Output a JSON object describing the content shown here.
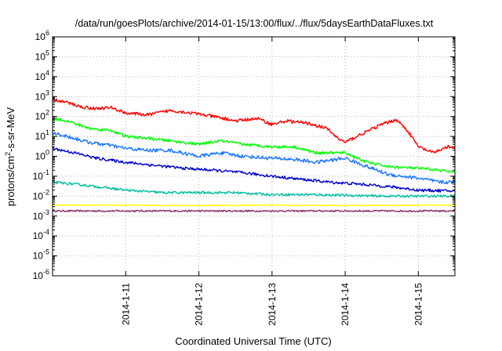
{
  "chart_data": {
    "type": "line",
    "title": "/data/run/goesPlots/archive/2014-01-15/13:00/flux/../flux/5daysEarthDataFluxes.txt",
    "xlabel": "Coordinated Universal Time (UTC)",
    "ylabel_parts": {
      "base": "protons/cm",
      "sup": "2",
      "rest": "-s-sr-MeV"
    },
    "y_scale": "log",
    "ylim": [
      1e-06,
      1000000
    ],
    "y_tick_exponents": [
      -6,
      -5,
      -4,
      -3,
      -2,
      -1,
      0,
      1,
      2,
      3,
      4,
      5,
      6
    ],
    "xlim": [
      0,
      5.5
    ],
    "x_ticks": [
      {
        "label": "2014-1-11",
        "x": 1
      },
      {
        "label": "2014-1-12",
        "x": 2
      },
      {
        "label": "2014-1-13",
        "x": 3
      },
      {
        "label": "2014-1-14",
        "x": 4
      },
      {
        "label": "2014-1-15",
        "x": 5
      }
    ],
    "grid": true,
    "series": [
      {
        "color": "#ff0000",
        "noise": 0.08,
        "x": [
          0,
          0.2,
          0.4,
          0.6,
          0.8,
          1.0,
          1.3,
          1.6,
          1.9,
          2.2,
          2.5,
          2.8,
          3.0,
          3.2,
          3.5,
          3.75,
          3.9,
          4.0,
          4.2,
          4.5,
          4.7,
          4.85,
          5.0,
          5.2,
          5.4,
          5.5
        ],
        "y": [
          700,
          500,
          300,
          250,
          280,
          150,
          120,
          200,
          150,
          100,
          60,
          80,
          40,
          60,
          45,
          25,
          8,
          5,
          12,
          40,
          70,
          20,
          3,
          1.5,
          3,
          2.5
        ]
      },
      {
        "color": "#00ff00",
        "noise": 0.07,
        "x": [
          0,
          0.2,
          0.5,
          0.8,
          1.0,
          1.3,
          1.6,
          2.0,
          2.3,
          2.6,
          3.0,
          3.3,
          3.6,
          4.0,
          4.3,
          4.6,
          5.0,
          5.3,
          5.5
        ],
        "y": [
          80,
          60,
          25,
          20,
          10,
          8,
          6,
          4,
          6,
          4,
          3,
          3,
          1.5,
          1.5,
          0.5,
          0.3,
          0.25,
          0.2,
          0.15
        ]
      },
      {
        "color": "#1e78ff",
        "noise": 0.09,
        "x": [
          0,
          0.2,
          0.5,
          0.8,
          1.0,
          1.3,
          1.6,
          2.0,
          2.3,
          2.6,
          3.0,
          3.3,
          3.6,
          4.0,
          4.3,
          4.6,
          5.0,
          5.3,
          5.5
        ],
        "y": [
          15,
          10,
          5,
          3.5,
          2.5,
          2,
          2,
          1,
          1.5,
          1,
          0.8,
          0.7,
          0.5,
          0.8,
          0.3,
          0.12,
          0.08,
          0.05,
          0.05
        ]
      },
      {
        "color": "#0000cc",
        "noise": 0.07,
        "x": [
          0,
          0.3,
          0.6,
          1.0,
          1.4,
          1.8,
          2.2,
          2.6,
          3.0,
          3.4,
          3.8,
          4.2,
          4.6,
          5.0,
          5.5
        ],
        "y": [
          2.5,
          1.5,
          0.8,
          0.5,
          0.35,
          0.25,
          0.2,
          0.15,
          0.1,
          0.07,
          0.05,
          0.04,
          0.03,
          0.02,
          0.018
        ]
      },
      {
        "color": "#00bfa0",
        "noise": 0.06,
        "x": [
          0,
          0.3,
          0.6,
          1.0,
          1.5,
          2.0,
          2.5,
          3.0,
          3.5,
          4.0,
          4.5,
          5.0,
          5.5
        ],
        "y": [
          0.05,
          0.04,
          0.03,
          0.02,
          0.015,
          0.015,
          0.015,
          0.012,
          0.012,
          0.011,
          0.01,
          0.01,
          0.01
        ]
      },
      {
        "color": "#ffff00",
        "noise": 0.025,
        "x": [
          0,
          1,
          2,
          3,
          4,
          5,
          5.5
        ],
        "y": [
          0.0035,
          0.0035,
          0.0034,
          0.0035,
          0.0034,
          0.0035,
          0.0035
        ]
      },
      {
        "color": "#8b2b6b",
        "noise": 0.04,
        "x": [
          0,
          1,
          2,
          3,
          4,
          5,
          5.5
        ],
        "y": [
          0.0018,
          0.0018,
          0.0018,
          0.0018,
          0.0018,
          0.0018,
          0.0018
        ]
      }
    ]
  }
}
